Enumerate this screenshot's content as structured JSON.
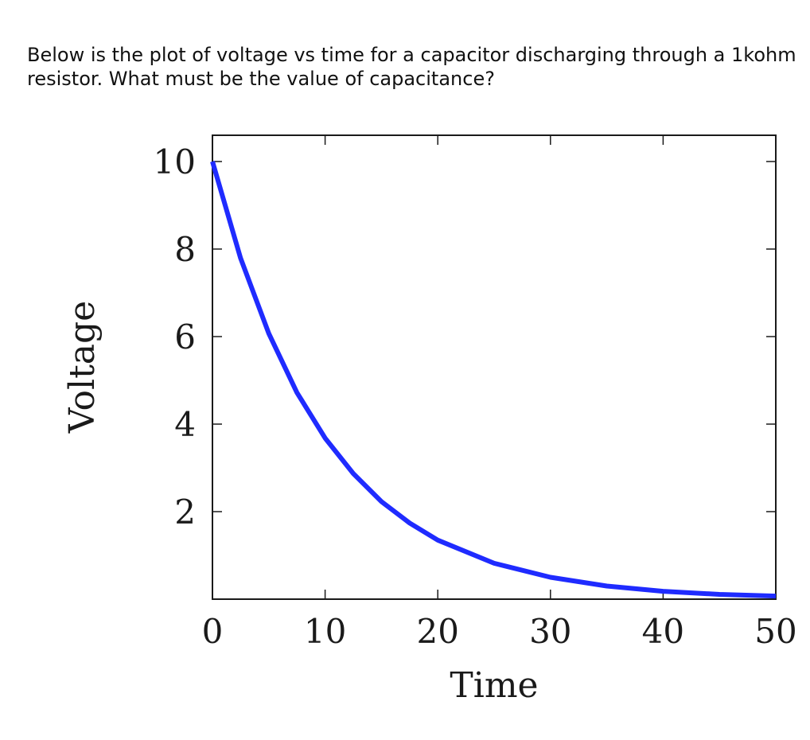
{
  "question": {
    "text": "Below is the plot of voltage vs time for a capacitor discharging through a 1kohm resistor. What must be the value of capacitance?"
  },
  "chart_data": {
    "type": "line",
    "title": "",
    "xlabel": "Time",
    "ylabel": "Voltage",
    "xlim": [
      0,
      50
    ],
    "ylim": [
      0,
      10.6
    ],
    "xticks": [
      0,
      10,
      20,
      30,
      40,
      50
    ],
    "yticks": [
      2,
      4,
      6,
      8,
      10
    ],
    "grid": false,
    "legend": "none",
    "series": [
      {
        "color": "#1f2bff",
        "x": [
          0,
          2.5,
          5,
          7.5,
          10,
          12.5,
          15,
          17.5,
          20,
          25,
          30,
          35,
          40,
          45,
          50
        ],
        "y": [
          10,
          7.79,
          6.07,
          4.72,
          3.68,
          2.87,
          2.23,
          1.74,
          1.35,
          0.82,
          0.5,
          0.3,
          0.18,
          0.11,
          0.07
        ]
      }
    ]
  }
}
